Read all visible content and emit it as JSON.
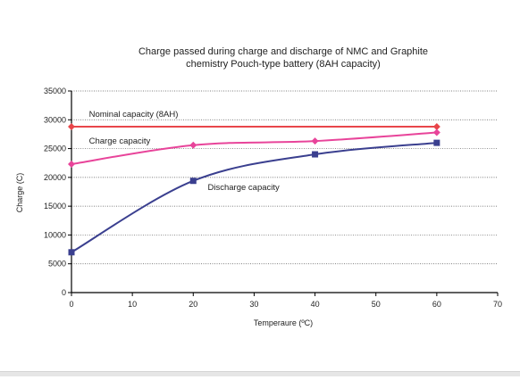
{
  "chart_data": {
    "type": "line",
    "title_lines": [
      "Charge passed during charge and discharge of NMC and Graphite",
      "chemistry Pouch-type battery (8AH capacity)"
    ],
    "xlabel": "Temperaure (ºC)",
    "ylabel": "Charge (C)",
    "xlim": [
      0,
      70
    ],
    "ylim": [
      0,
      35000
    ],
    "xticks": [
      "0",
      "10",
      "20",
      "30",
      "40",
      "50",
      "60",
      "70"
    ],
    "yticks": [
      "0",
      "5000",
      "10000",
      "15000",
      "20000",
      "25000",
      "30000",
      "35000"
    ],
    "grid": "horizontal-dotted",
    "series": [
      {
        "name": "Nominal capacity (8AH)",
        "color": "#e8464a",
        "marker": "diamond",
        "x": [
          0,
          60
        ],
        "y": [
          28800,
          28800
        ],
        "label_pos": [
          2,
          31000
        ]
      },
      {
        "name": "Charge capacity",
        "color": "#e8449a",
        "marker": "diamond",
        "x": [
          0,
          20,
          40,
          60
        ],
        "y": [
          22300,
          25600,
          26300,
          27800
        ],
        "label_pos": [
          2,
          26300
        ]
      },
      {
        "name": "Discharge capacity",
        "color": "#3a3f8f",
        "marker": "square",
        "x": [
          0,
          20,
          40,
          60
        ],
        "y": [
          7000,
          19400,
          24000,
          26000
        ],
        "label_pos": [
          21.5,
          18300
        ]
      }
    ]
  }
}
